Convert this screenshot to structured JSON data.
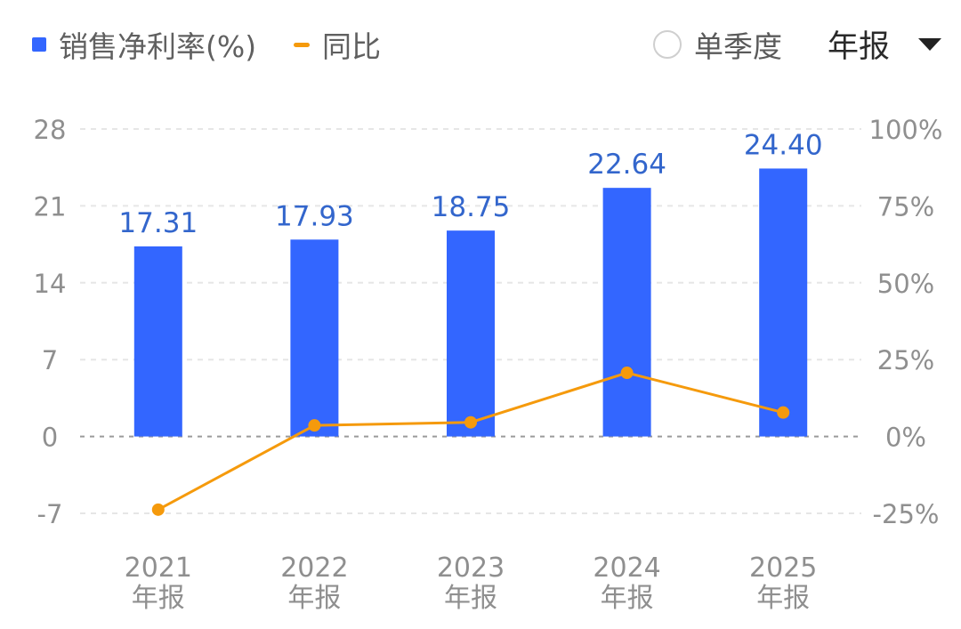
{
  "legend": {
    "bar_label": "销售净利率(%)",
    "line_label": "同比"
  },
  "controls": {
    "single_quarter_label": "单季度",
    "period_selected": "年报"
  },
  "colors": {
    "bar": "#3366ff",
    "line": "#f59a0c",
    "bar_label_text": "#3366cc",
    "axis_text": "#8f8f8f",
    "grid": "#e6e6e6",
    "zero_line": "#9a9a9a"
  },
  "chart_data": {
    "type": "bar",
    "categories": [
      "2021\n年报",
      "2022\n年报",
      "2023\n年报",
      "2024\n年报",
      "2025\n年报"
    ],
    "series": [
      {
        "name": "销售净利率(%)",
        "type": "bar",
        "axis": "left",
        "values": [
          17.31,
          17.93,
          18.75,
          22.64,
          24.4
        ],
        "labels": [
          "17.31",
          "17.93",
          "18.75",
          "22.64",
          "24.40"
        ]
      },
      {
        "name": "同比",
        "type": "line",
        "axis": "right",
        "values": [
          -23.8,
          3.6,
          4.6,
          20.7,
          7.8
        ]
      }
    ],
    "y_left": {
      "ticks": [
        28,
        21,
        14,
        7,
        0,
        -7
      ],
      "labels": [
        "28",
        "21",
        "14",
        "7",
        "0",
        "-7"
      ],
      "range": [
        -7,
        28
      ]
    },
    "y_right": {
      "ticks": [
        100,
        75,
        50,
        25,
        0,
        -25
      ],
      "labels": [
        "100%",
        "75%",
        "50%",
        "25%",
        "0%",
        "-25%"
      ],
      "range": [
        -25,
        100
      ]
    },
    "grid": true,
    "legend_position": "top-left"
  }
}
